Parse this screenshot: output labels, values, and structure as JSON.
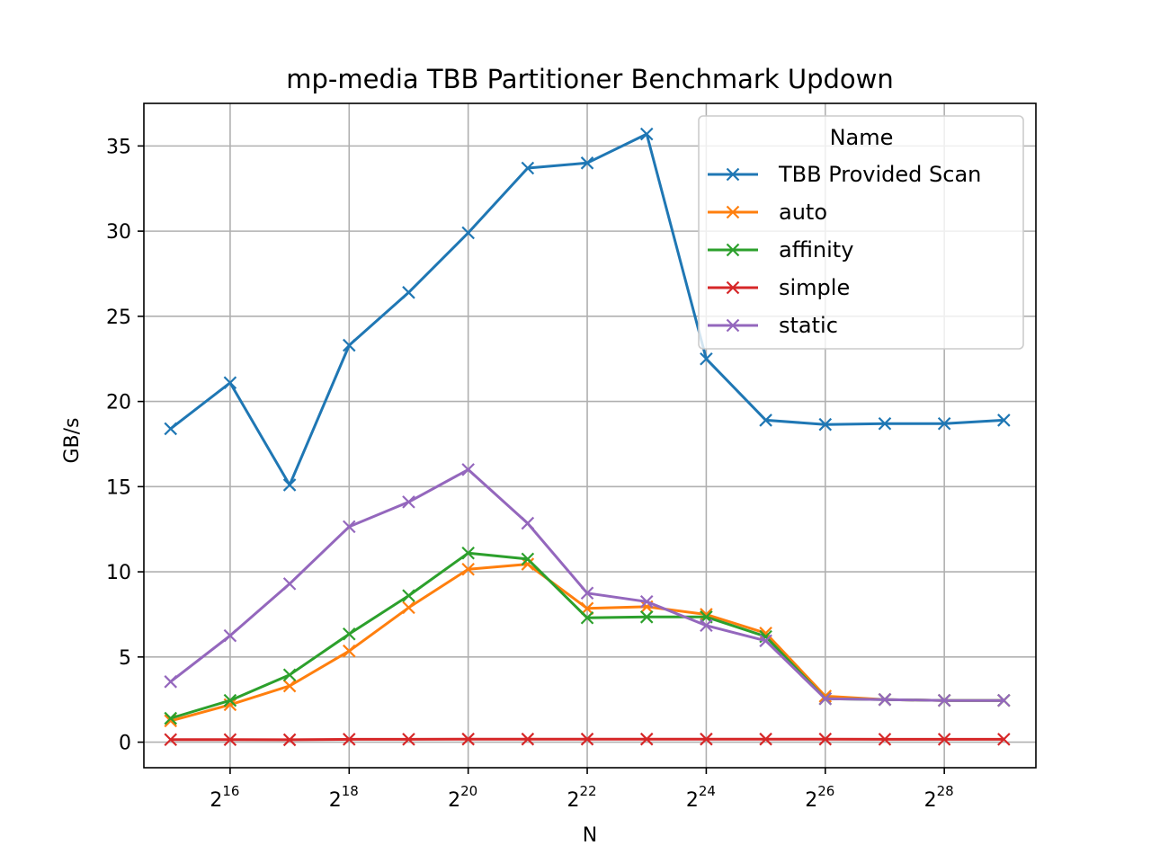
{
  "chart_data": {
    "type": "line",
    "title": "mp-media TBB Partitioner Benchmark Updown",
    "xlabel": "N",
    "ylabel": "GB/s",
    "x_scale": "log2",
    "x": [
      32768,
      65536,
      131072,
      262144,
      524288,
      1048576,
      2097152,
      4194304,
      8388608,
      16777216,
      33554432,
      67108864,
      134217728,
      268435456,
      536870912
    ],
    "xlim": [
      24000,
      780000000
    ],
    "ylim": [
      -1.5,
      37.5
    ],
    "x_ticks": [
      {
        "value": 65536,
        "base": "2",
        "exp": "16"
      },
      {
        "value": 262144,
        "base": "2",
        "exp": "18"
      },
      {
        "value": 1048576,
        "base": "2",
        "exp": "20"
      },
      {
        "value": 4194304,
        "base": "2",
        "exp": "22"
      },
      {
        "value": 16777216,
        "base": "2",
        "exp": "24"
      },
      {
        "value": 67108864,
        "base": "2",
        "exp": "26"
      },
      {
        "value": 268435456,
        "base": "2",
        "exp": "28"
      }
    ],
    "y_ticks": [
      {
        "value": 0,
        "label": "0"
      },
      {
        "value": 5,
        "label": "5"
      },
      {
        "value": 10,
        "label": "10"
      },
      {
        "value": 15,
        "label": "15"
      },
      {
        "value": 20,
        "label": "20"
      },
      {
        "value": 25,
        "label": "25"
      },
      {
        "value": 30,
        "label": "30"
      },
      {
        "value": 35,
        "label": "35"
      }
    ],
    "grid": true,
    "marker": "x",
    "legend": {
      "title": "Name",
      "position": "upper right"
    },
    "series": [
      {
        "name": "TBB Provided Scan",
        "color": "#1f77b4",
        "values": [
          18.4,
          21.1,
          15.1,
          23.3,
          26.4,
          29.9,
          33.7,
          34.0,
          35.7,
          22.5,
          18.9,
          18.65,
          18.7,
          18.7,
          18.9
        ]
      },
      {
        "name": "auto",
        "color": "#ff7f0e",
        "values": [
          1.25,
          2.2,
          3.3,
          5.35,
          7.9,
          10.15,
          10.45,
          7.85,
          7.95,
          7.5,
          6.4,
          2.7,
          2.5,
          2.45,
          2.45
        ]
      },
      {
        "name": "affinity",
        "color": "#2ca02c",
        "values": [
          1.4,
          2.45,
          3.95,
          6.35,
          8.6,
          11.1,
          10.75,
          7.3,
          7.35,
          7.35,
          6.2,
          2.55,
          2.5,
          2.45,
          2.45
        ]
      },
      {
        "name": "simple",
        "color": "#d62728",
        "values": [
          0.15,
          0.15,
          0.14,
          0.17,
          0.17,
          0.18,
          0.18,
          0.18,
          0.18,
          0.18,
          0.18,
          0.18,
          0.17,
          0.17,
          0.17
        ]
      },
      {
        "name": "static",
        "color": "#9467bd",
        "values": [
          3.55,
          6.25,
          9.3,
          12.65,
          14.1,
          16.0,
          12.85,
          8.75,
          8.25,
          6.85,
          5.95,
          2.55,
          2.5,
          2.45,
          2.45
        ]
      }
    ]
  }
}
